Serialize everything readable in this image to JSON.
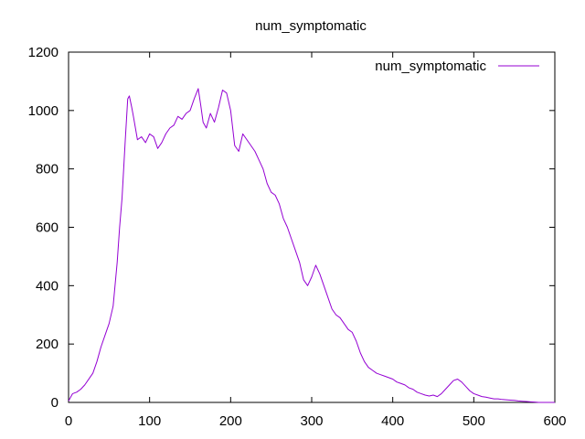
{
  "chart_data": {
    "type": "line",
    "title": "num_symptomatic",
    "xlabel": "",
    "ylabel": "",
    "xlim": [
      0,
      600
    ],
    "ylim": [
      0,
      1200
    ],
    "x_ticks": [
      0,
      100,
      200,
      300,
      400,
      500,
      600
    ],
    "y_ticks": [
      0,
      200,
      400,
      600,
      800,
      1000,
      1200
    ],
    "grid": false,
    "legend_position": "top-right",
    "series": [
      {
        "name": "num_symptomatic",
        "color": "#9400d3",
        "x": [
          0,
          5,
          10,
          15,
          20,
          25,
          30,
          35,
          40,
          45,
          50,
          55,
          60,
          63,
          66,
          70,
          73,
          75,
          78,
          80,
          85,
          90,
          95,
          100,
          105,
          110,
          115,
          120,
          125,
          130,
          135,
          140,
          145,
          150,
          155,
          160,
          163,
          166,
          170,
          175,
          180,
          185,
          190,
          195,
          200,
          205,
          210,
          215,
          220,
          225,
          230,
          235,
          240,
          245,
          250,
          255,
          260,
          265,
          270,
          275,
          280,
          285,
          290,
          295,
          300,
          305,
          310,
          315,
          320,
          325,
          330,
          335,
          340,
          345,
          350,
          355,
          360,
          365,
          370,
          375,
          380,
          385,
          390,
          395,
          400,
          405,
          410,
          415,
          420,
          425,
          430,
          435,
          440,
          445,
          450,
          455,
          460,
          465,
          470,
          475,
          480,
          485,
          490,
          495,
          500,
          505,
          510,
          515,
          520,
          525,
          530,
          535,
          540,
          545,
          550,
          555,
          560,
          565,
          570,
          575,
          580,
          585,
          590,
          595,
          600
        ],
        "y": [
          5,
          30,
          35,
          45,
          60,
          80,
          100,
          140,
          190,
          230,
          270,
          330,
          480,
          600,
          700,
          900,
          1040,
          1050,
          1010,
          980,
          900,
          910,
          890,
          920,
          910,
          870,
          890,
          920,
          940,
          950,
          980,
          970,
          990,
          1000,
          1040,
          1075,
          1020,
          960,
          940,
          990,
          960,
          1010,
          1070,
          1060,
          1000,
          880,
          860,
          920,
          900,
          880,
          860,
          830,
          800,
          750,
          720,
          710,
          680,
          630,
          600,
          560,
          520,
          480,
          420,
          400,
          430,
          470,
          440,
          400,
          360,
          320,
          300,
          290,
          270,
          250,
          240,
          210,
          170,
          140,
          120,
          110,
          100,
          95,
          90,
          85,
          80,
          70,
          65,
          60,
          50,
          45,
          35,
          30,
          25,
          22,
          25,
          20,
          30,
          45,
          60,
          75,
          80,
          70,
          55,
          40,
          30,
          25,
          20,
          18,
          15,
          12,
          12,
          10,
          9,
          8,
          7,
          5,
          4,
          3,
          2,
          1,
          0,
          0,
          0,
          0,
          0
        ]
      }
    ]
  }
}
